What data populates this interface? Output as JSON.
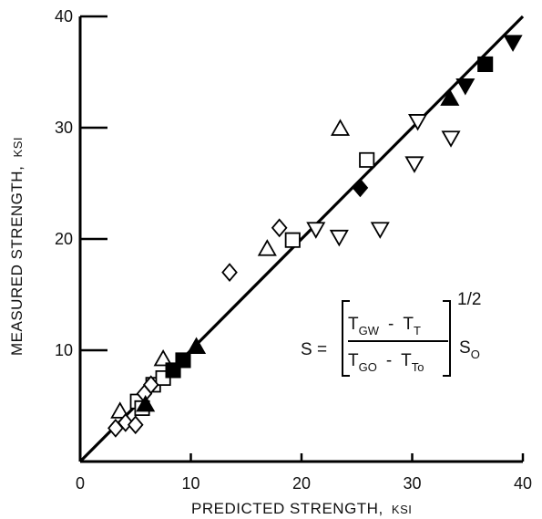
{
  "chart_data": {
    "type": "scatter",
    "xlabel": "PREDICTED STRENGTH,",
    "xlabel_unit": "KSI",
    "ylabel": "MEASURED STRENGTH,",
    "ylabel_unit": "KSI",
    "xlim": [
      0,
      40
    ],
    "ylim": [
      0,
      40
    ],
    "xticks": [
      0,
      10,
      20,
      30,
      40
    ],
    "yticks": [
      10,
      20,
      30,
      40
    ],
    "grid": false,
    "reference_line": {
      "from": [
        0,
        0
      ],
      "to": [
        40,
        40
      ]
    },
    "equation": {
      "lhs": "S =",
      "num_a": "T",
      "num_a_sub": "GW",
      "num_op": "-",
      "num_b": "T",
      "num_b_sub": "T",
      "den_a": "T",
      "den_a_sub": "GO",
      "den_op": "-",
      "den_b": "T",
      "den_b_sub": "To",
      "exponent": "1/2",
      "rhs": "S",
      "rhs_sub": "O"
    },
    "series": [
      {
        "marker": "triangle-up-open",
        "points": [
          [
            3.6,
            4.5
          ],
          [
            7.5,
            9.2
          ],
          [
            16.9,
            19.1
          ],
          [
            23.5,
            29.9
          ]
        ]
      },
      {
        "marker": "square-open",
        "points": [
          [
            5.2,
            5.4
          ],
          [
            5.6,
            4.8
          ],
          [
            6.6,
            6.9
          ],
          [
            7.5,
            7.5
          ],
          [
            19.2,
            19.9
          ],
          [
            25.9,
            27.1
          ]
        ]
      },
      {
        "marker": "diamond-open",
        "points": [
          [
            3.2,
            3.0
          ],
          [
            4.1,
            3.5
          ],
          [
            5.0,
            3.3
          ],
          [
            5.8,
            6.1
          ],
          [
            6.4,
            6.9
          ],
          [
            13.5,
            17.0
          ],
          [
            18.0,
            21.0
          ]
        ]
      },
      {
        "marker": "triangle-down-open",
        "points": [
          [
            21.3,
            20.9
          ],
          [
            23.4,
            20.2
          ],
          [
            27.1,
            20.9
          ],
          [
            30.2,
            26.8
          ],
          [
            30.5,
            30.6
          ],
          [
            33.5,
            29.1
          ]
        ]
      },
      {
        "marker": "triangle-up-filled",
        "points": [
          [
            5.9,
            5.1
          ],
          [
            10.5,
            10.3
          ],
          [
            33.4,
            32.6
          ]
        ]
      },
      {
        "marker": "square-filled",
        "points": [
          [
            8.4,
            8.2
          ],
          [
            9.3,
            9.1
          ],
          [
            36.6,
            35.7
          ]
        ]
      },
      {
        "marker": "diamond-filled",
        "points": [
          [
            25.3,
            24.6
          ]
        ]
      },
      {
        "marker": "triangle-down-filled",
        "points": [
          [
            34.8,
            33.8
          ],
          [
            39.1,
            37.7
          ]
        ]
      }
    ]
  }
}
